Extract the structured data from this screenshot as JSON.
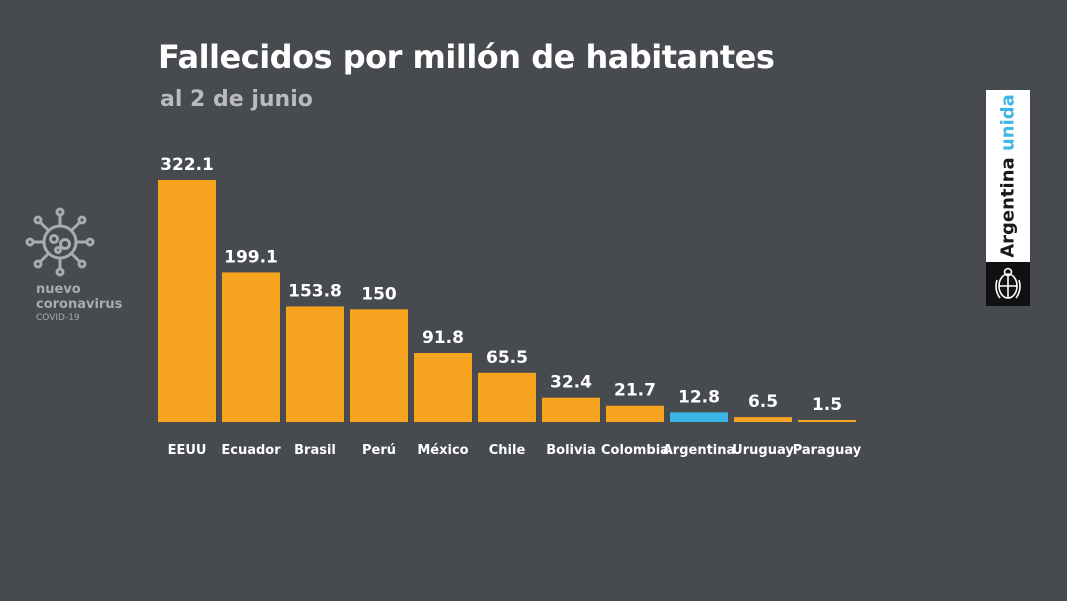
{
  "title": "Fallecidos por millón de habitantes",
  "subtitle": "al 2 de junio",
  "brand": {
    "line1": "nuevo",
    "line2": "coronavirus",
    "line3": "COVID-19",
    "icon": "virus-icon"
  },
  "badge": {
    "word1": "Argentina",
    "word2": "unida",
    "word2_color": "#3fb6e6",
    "emblem_icon": "national-emblem-icon"
  },
  "colors": {
    "background": "#474a4f",
    "bar_default": "#f6a31f",
    "bar_highlight": "#3bb4e6"
  },
  "chart_data": {
    "type": "bar",
    "categories": [
      "EEUU",
      "Ecuador",
      "Brasil",
      "Perú",
      "México",
      "Chile",
      "Bolivia",
      "Colombia",
      "Argentina",
      "Uruguay",
      "Paraguay"
    ],
    "values": [
      322.1,
      199.1,
      153.8,
      150,
      91.8,
      65.5,
      32.4,
      21.7,
      12.8,
      6.5,
      1.5
    ],
    "value_labels": [
      "322.1",
      "199.1",
      "153.8",
      "150",
      "91.8",
      "65.5",
      "32.4",
      "21.7",
      "12.8",
      "6.5",
      "1.5"
    ],
    "highlight": "Argentina",
    "title": "Fallecidos por millón de habitantes",
    "subtitle": "al 2 de junio",
    "xlabel": "",
    "ylabel": "",
    "ylim": [
      0,
      322.1
    ],
    "grid": false,
    "legend": "none"
  }
}
